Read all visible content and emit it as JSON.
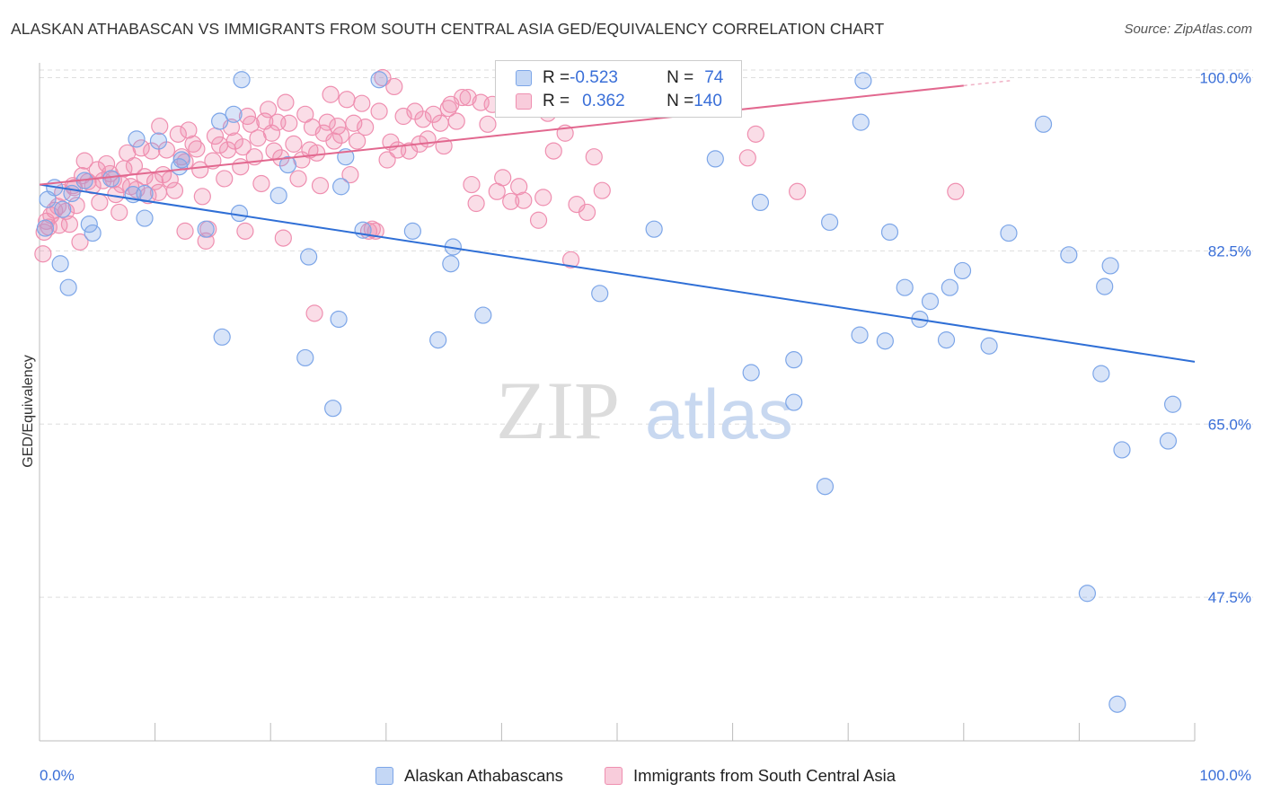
{
  "title": "ALASKAN ATHABASCAN VS IMMIGRANTS FROM SOUTH CENTRAL ASIA GED/EQUIVALENCY CORRELATION CHART",
  "source": "Source: ZipAtlas.com",
  "watermark": {
    "zip": "ZIP",
    "atlas": "atlas"
  },
  "colors": {
    "blue": "#7da6e8",
    "blue_fill": "rgba(125,166,232,0.30)",
    "blue_line": "#2f6fd6",
    "pink": "#ef8fb0",
    "pink_fill": "rgba(239,143,176,0.30)",
    "pink_line": "#e2688f",
    "grid": "#dddddd",
    "tick_label": "#3a6fd8"
  },
  "legend": {
    "rows": [
      {
        "r_label": "R = ",
        "r_value": "-0.523",
        "n_label": "N = ",
        "n_value": "74"
      },
      {
        "r_label": "R = ",
        "r_value": "0.362",
        "n_label": "N = ",
        "n_value": "140"
      }
    ]
  },
  "bottom_legend": {
    "series1": "Alaskan Athabascans",
    "series2": "Immigrants from South Central Asia"
  },
  "chart_data": {
    "type": "scatter",
    "title": "ALASKAN ATHABASCAN VS IMMIGRANTS FROM SOUTH CENTRAL ASIA GED/EQUIVALENCY CORRELATION CHART",
    "xlabel": "",
    "ylabel": "GED/Equivalency",
    "xlim": [
      0,
      100
    ],
    "ylim": [
      33,
      101.5
    ],
    "x_tick_labels": [
      "0.0%",
      "100.0%"
    ],
    "y_ticks": [
      47.5,
      65.0,
      82.5,
      100.0
    ],
    "y_tick_labels": [
      "47.5%",
      "65.0%",
      "82.5%",
      "100.0%"
    ],
    "grid": true,
    "legend_position": "top-center",
    "series": [
      {
        "name": "Alaskan Athabascans",
        "color": "blue",
        "r": -0.523,
        "n": 74,
        "trend": {
          "x": [
            0,
            100
          ],
          "y": [
            89.2,
            71.3
          ]
        },
        "points": [
          [
            0.5,
            84.8
          ],
          [
            0.7,
            87.7
          ],
          [
            1.3,
            88.9
          ],
          [
            2.0,
            86.7
          ],
          [
            2.8,
            88.3
          ],
          [
            1.8,
            81.2
          ],
          [
            2.5,
            78.8
          ],
          [
            3.9,
            89.6
          ],
          [
            4.3,
            85.2
          ],
          [
            4.6,
            84.3
          ],
          [
            6.2,
            89.8
          ],
          [
            8.1,
            88.2
          ],
          [
            8.4,
            93.8
          ],
          [
            9.1,
            85.8
          ],
          [
            9.1,
            88.3
          ],
          [
            10.3,
            93.6
          ],
          [
            12.3,
            91.7
          ],
          [
            12.1,
            91.0
          ],
          [
            14.4,
            84.7
          ],
          [
            15.6,
            95.6
          ],
          [
            15.8,
            73.8
          ],
          [
            16.8,
            96.3
          ],
          [
            17.3,
            86.3
          ],
          [
            17.5,
            99.8
          ],
          [
            20.7,
            88.1
          ],
          [
            21.5,
            91.2
          ],
          [
            23.0,
            71.7
          ],
          [
            23.3,
            81.9
          ],
          [
            25.4,
            66.6
          ],
          [
            25.9,
            75.6
          ],
          [
            26.1,
            89.0
          ],
          [
            26.5,
            92.0
          ],
          [
            28.0,
            84.6
          ],
          [
            29.4,
            99.8
          ],
          [
            32.3,
            84.5
          ],
          [
            34.5,
            73.5
          ],
          [
            35.6,
            81.2
          ],
          [
            35.8,
            82.9
          ],
          [
            38.4,
            76.0
          ],
          [
            48.5,
            78.2
          ],
          [
            53.2,
            84.7
          ],
          [
            58.5,
            91.8
          ],
          [
            61.6,
            70.2
          ],
          [
            62.4,
            87.4
          ],
          [
            65.3,
            71.5
          ],
          [
            65.3,
            67.2
          ],
          [
            68.0,
            58.7
          ],
          [
            68.4,
            85.4
          ],
          [
            71.0,
            74.0
          ],
          [
            71.1,
            95.5
          ],
          [
            71.3,
            99.7
          ],
          [
            73.2,
            73.4
          ],
          [
            73.6,
            84.4
          ],
          [
            74.9,
            78.8
          ],
          [
            76.2,
            75.6
          ],
          [
            77.1,
            77.4
          ],
          [
            78.5,
            73.5
          ],
          [
            78.8,
            78.8
          ],
          [
            79.9,
            80.5
          ],
          [
            82.2,
            72.9
          ],
          [
            83.9,
            84.3
          ],
          [
            86.9,
            95.3
          ],
          [
            89.1,
            82.1
          ],
          [
            90.7,
            47.9
          ],
          [
            92.2,
            78.9
          ],
          [
            92.7,
            81.0
          ],
          [
            93.3,
            36.7
          ],
          [
            91.9,
            70.1
          ],
          [
            93.7,
            62.4
          ],
          [
            97.7,
            63.3
          ],
          [
            98.1,
            67.0
          ]
        ]
      },
      {
        "name": "Immigrants from South Central Asia",
        "color": "pink",
        "r": 0.362,
        "n": 140,
        "trend": {
          "x": [
            0,
            80
          ],
          "y": [
            89.2,
            99.2
          ]
        },
        "points": [
          [
            0.3,
            82.2
          ],
          [
            0.4,
            84.4
          ],
          [
            0.6,
            85.5
          ],
          [
            0.8,
            84.9
          ],
          [
            1.0,
            86.1
          ],
          [
            1.3,
            86.6
          ],
          [
            1.6,
            87.0
          ],
          [
            1.7,
            85.1
          ],
          [
            2.0,
            88.4
          ],
          [
            2.3,
            86.5
          ],
          [
            2.6,
            85.2
          ],
          [
            2.9,
            89.1
          ],
          [
            3.0,
            88.9
          ],
          [
            3.2,
            87.1
          ],
          [
            3.5,
            83.4
          ],
          [
            3.7,
            90.1
          ],
          [
            3.9,
            91.6
          ],
          [
            4.2,
            89.5
          ],
          [
            4.6,
            89.1
          ],
          [
            5.0,
            90.7
          ],
          [
            5.2,
            87.4
          ],
          [
            5.5,
            89.6
          ],
          [
            5.8,
            91.3
          ],
          [
            6.1,
            90.3
          ],
          [
            6.4,
            89.7
          ],
          [
            6.6,
            88.2
          ],
          [
            6.9,
            86.4
          ],
          [
            7.1,
            89.2
          ],
          [
            7.3,
            90.8
          ],
          [
            7.6,
            92.4
          ],
          [
            7.9,
            89.0
          ],
          [
            8.2,
            91.1
          ],
          [
            8.4,
            88.7
          ],
          [
            8.8,
            92.9
          ],
          [
            9.1,
            90.0
          ],
          [
            9.4,
            88.1
          ],
          [
            9.7,
            92.6
          ],
          [
            10.0,
            89.5
          ],
          [
            10.3,
            88.4
          ],
          [
            10.4,
            95.1
          ],
          [
            10.7,
            90.2
          ],
          [
            11.0,
            92.7
          ],
          [
            11.3,
            89.7
          ],
          [
            11.7,
            88.6
          ],
          [
            12.0,
            94.3
          ],
          [
            12.3,
            92.0
          ],
          [
            12.6,
            91.5
          ],
          [
            12.6,
            84.5
          ],
          [
            12.9,
            94.7
          ],
          [
            13.3,
            93.3
          ],
          [
            13.6,
            92.8
          ],
          [
            13.9,
            90.7
          ],
          [
            14.1,
            88.0
          ],
          [
            14.4,
            83.5
          ],
          [
            14.6,
            84.7
          ],
          [
            15.0,
            91.6
          ],
          [
            15.2,
            94.1
          ],
          [
            15.6,
            93.2
          ],
          [
            16.0,
            89.8
          ],
          [
            16.3,
            92.7
          ],
          [
            16.6,
            95.0
          ],
          [
            16.9,
            93.6
          ],
          [
            17.4,
            91.0
          ],
          [
            17.6,
            93.0
          ],
          [
            17.8,
            84.5
          ],
          [
            18.0,
            96.1
          ],
          [
            18.3,
            95.3
          ],
          [
            18.6,
            92.0
          ],
          [
            18.9,
            93.9
          ],
          [
            19.2,
            89.3
          ],
          [
            19.5,
            95.6
          ],
          [
            19.8,
            96.8
          ],
          [
            20.1,
            94.4
          ],
          [
            20.3,
            92.6
          ],
          [
            20.6,
            95.5
          ],
          [
            20.9,
            91.9
          ],
          [
            21.1,
            83.8
          ],
          [
            21.3,
            97.5
          ],
          [
            21.6,
            95.4
          ],
          [
            22.0,
            93.3
          ],
          [
            22.4,
            89.8
          ],
          [
            22.7,
            91.7
          ],
          [
            23.0,
            96.3
          ],
          [
            23.4,
            92.7
          ],
          [
            23.6,
            95.0
          ],
          [
            23.8,
            76.2
          ],
          [
            24.0,
            92.4
          ],
          [
            24.3,
            89.1
          ],
          [
            24.6,
            94.4
          ],
          [
            24.9,
            95.5
          ],
          [
            25.2,
            98.3
          ],
          [
            25.5,
            93.6
          ],
          [
            25.8,
            95.1
          ],
          [
            26.1,
            94.2
          ],
          [
            26.6,
            97.8
          ],
          [
            26.9,
            90.2
          ],
          [
            27.2,
            95.4
          ],
          [
            27.5,
            93.6
          ],
          [
            27.9,
            97.4
          ],
          [
            28.2,
            95.0
          ],
          [
            28.5,
            84.5
          ],
          [
            28.8,
            84.7
          ],
          [
            29.1,
            84.5
          ],
          [
            29.4,
            96.6
          ],
          [
            29.7,
            100.0
          ],
          [
            30.1,
            91.7
          ],
          [
            30.4,
            93.5
          ],
          [
            30.7,
            99.1
          ],
          [
            31.0,
            92.7
          ],
          [
            31.5,
            96.1
          ],
          [
            32.0,
            92.6
          ],
          [
            32.5,
            96.6
          ],
          [
            32.9,
            93.3
          ],
          [
            33.2,
            95.8
          ],
          [
            33.6,
            93.8
          ],
          [
            34.1,
            96.3
          ],
          [
            34.7,
            95.4
          ],
          [
            35.0,
            93.1
          ],
          [
            35.4,
            96.9
          ],
          [
            35.6,
            97.3
          ],
          [
            36.1,
            95.6
          ],
          [
            36.6,
            98.0
          ],
          [
            37.1,
            98.0
          ],
          [
            37.4,
            89.2
          ],
          [
            37.8,
            87.3
          ],
          [
            38.2,
            97.5
          ],
          [
            38.8,
            95.3
          ],
          [
            39.2,
            97.3
          ],
          [
            39.6,
            88.5
          ],
          [
            40.1,
            89.9
          ],
          [
            40.8,
            87.5
          ],
          [
            41.5,
            89.0
          ],
          [
            41.9,
            87.6
          ],
          [
            43.2,
            85.6
          ],
          [
            43.6,
            87.9
          ],
          [
            44.0,
            96.4
          ],
          [
            44.5,
            92.6
          ],
          [
            45.0,
            97.8
          ],
          [
            45.5,
            94.4
          ],
          [
            46.0,
            81.6
          ],
          [
            46.5,
            87.2
          ],
          [
            47.4,
            86.4
          ],
          [
            48.0,
            92.0
          ],
          [
            48.7,
            88.6
          ],
          [
            61.3,
            91.9
          ],
          [
            62.0,
            94.3
          ],
          [
            65.6,
            88.5
          ],
          [
            79.3,
            88.5
          ]
        ]
      }
    ]
  }
}
